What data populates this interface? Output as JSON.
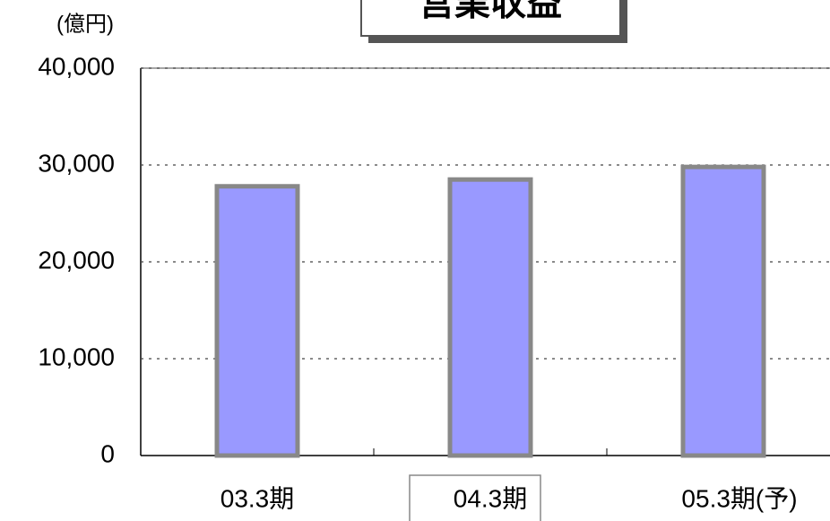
{
  "chart_data": {
    "type": "bar",
    "title": "営業収益",
    "y_axis_label": "(億円)",
    "categories": [
      "03.3期",
      "04.3期",
      "05.3期(予)"
    ],
    "values": [
      27800,
      28500,
      29800
    ],
    "color": "#9999ff",
    "ylim": [
      0,
      40000
    ],
    "yticks": [
      0,
      {
        "value": 10000,
        "label": "10,000"
      },
      {
        "value": 20000,
        "label": "20,000"
      },
      {
        "value": 30000,
        "label": "30,000"
      },
      {
        "value": 40000,
        "label": "40,000"
      }
    ],
    "grid": true
  }
}
